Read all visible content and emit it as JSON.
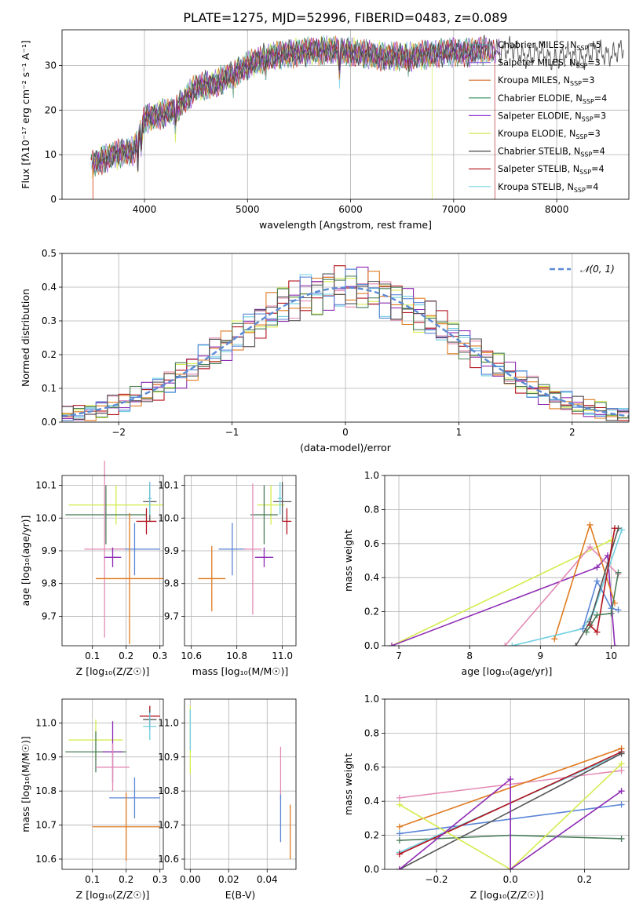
{
  "title": "PLATE=1275, MJD=52996, FIBERID=0483, z=0.089",
  "colors": {
    "Chabrier MILES": "#5f9ea0",
    "Salpeter MILES": "#9370db",
    "Kroupa MILES": "#d2691e",
    "Chabrier ELODIE": "#2e8b57",
    "Salpeter ELODIE": "#8b2fc9",
    "Kroupa ELODIE": "#d4e84a",
    "Chabrier STELIB": "#444444",
    "Salpeter STELIB": "#b0141a",
    "Kroupa STELIB": "#7fd4e6",
    "blue": "#5b86d6",
    "pink": "#e38ab5",
    "orange": "#e07b20",
    "purple": "#8e2bb4",
    "lime": "#d6ec50",
    "gray": "#555555",
    "red": "#b3121c",
    "cyan": "#6fcfe0",
    "green": "#4a7d5a",
    "normal": "#5b8bd6"
  },
  "chart_data": [
    {
      "id": "spectrum",
      "type": "line",
      "xlabel": "wavelength [Angstrom, rest frame]",
      "ylabel": "Flux [fλ10⁻¹⁷ erg cm⁻² s⁻¹ A⁻¹]",
      "xlim": [
        3200,
        8700
      ],
      "ylim": [
        0,
        38
      ],
      "xticks": [
        "4000",
        "5000",
        "6000",
        "7000",
        "8000"
      ],
      "yticks": [
        "0",
        "10",
        "20",
        "30"
      ],
      "anchors_x": [
        3500,
        3700,
        3900,
        4000,
        4300,
        4500,
        4700,
        5000,
        5200,
        5500,
        5800,
        6000,
        6300,
        6600,
        6900,
        7200,
        7400,
        7600,
        7900,
        8200,
        8500
      ],
      "anchors_y": [
        8,
        10,
        11,
        18,
        20,
        25,
        26,
        30,
        32,
        33,
        33.5,
        33,
        32,
        32,
        33,
        33,
        34,
        33,
        32,
        32,
        33
      ],
      "legend": [
        {
          "label": "Chabrier MILES, N",
          "sub": "SSP",
          "n": "=5",
          "color": "#5f9ea0"
        },
        {
          "label": "Salpeter MILES, N",
          "sub": "SSP",
          "n": "=3",
          "color": "#9370db"
        },
        {
          "label": "Kroupa MILES, N",
          "sub": "SSP",
          "n": "=3",
          "color": "#d2691e"
        },
        {
          "label": "Chabrier ELODIE, N",
          "sub": "SSP",
          "n": "=4",
          "color": "#2e8b57"
        },
        {
          "label": "Salpeter ELODIE, N",
          "sub": "SSP",
          "n": "=3",
          "color": "#8b2fc9"
        },
        {
          "label": "Kroupa ELODIE, N",
          "sub": "SSP",
          "n": "=3",
          "color": "#d4e84a"
        },
        {
          "label": "Chabrier STELIB, N",
          "sub": "SSP",
          "n": "=4",
          "color": "#444444"
        },
        {
          "label": "Salpeter STELIB, N",
          "sub": "SSP",
          "n": "=4",
          "color": "#b0141a"
        },
        {
          "label": "Kroupa STELIB, N",
          "sub": "SSP",
          "n": "=4",
          "color": "#7fd4e6"
        }
      ]
    },
    {
      "id": "residuals",
      "type": "line",
      "xlabel": "(data-model)/error",
      "ylabel": "Normed distribution",
      "xlim": [
        -2.5,
        2.5
      ],
      "ylim": [
        0,
        0.5
      ],
      "xticks": [
        "−2",
        "−1",
        "0",
        "1",
        "2"
      ],
      "yticks": [
        "0.0",
        "0.1",
        "0.2",
        "0.3",
        "0.4",
        "0.5"
      ],
      "legend_label": "𝒩(0, 1)",
      "legend_position": "top-right"
    },
    {
      "id": "age_vs_Z",
      "type": "scatter",
      "xlabel": "Z [log₁₀(Z/Z☉)]",
      "ylabel": "age  [log₁₀(age/yr)]",
      "xlim": [
        0.01,
        0.31
      ],
      "ylim": [
        9.61,
        10.13
      ],
      "xticks": [
        "0.1",
        "0.2",
        "0.3"
      ],
      "yticks": [
        "9.7",
        "9.8",
        "9.9",
        "10.0",
        "10.1"
      ],
      "points": [
        {
          "x": 0.17,
          "y": 10.04,
          "xerr": 0.14,
          "yerr": 0.06,
          "color": "#d6ec50"
        },
        {
          "x": 0.14,
          "y": 10.01,
          "xerr": 0.12,
          "yerr": 0.09,
          "color": "#4a7d5a"
        },
        {
          "x": 0.27,
          "y": 10.05,
          "xerr": 0.02,
          "yerr": 0.06,
          "color": "#555555"
        },
        {
          "x": 0.27,
          "y": 10.06,
          "xerr": 0.005,
          "yerr": 0.05,
          "color": "#6fcfe0"
        },
        {
          "x": 0.26,
          "y": 9.99,
          "xerr": 0.03,
          "yerr": 0.04,
          "color": "#b3121c"
        },
        {
          "x": 0.225,
          "y": 9.905,
          "xerr": 0.075,
          "yerr": 0.08,
          "color": "#5b86d6"
        },
        {
          "x": 0.136,
          "y": 9.905,
          "xerr": 0.06,
          "yerr": 0.27,
          "color": "#e38ab5"
        },
        {
          "x": 0.16,
          "y": 9.88,
          "xerr": 0.025,
          "yerr": 0.03,
          "color": "#8e2bb4"
        },
        {
          "x": 0.21,
          "y": 9.815,
          "xerr": 0.1,
          "yerr": 0.2,
          "color": "#e07b20"
        }
      ]
    },
    {
      "id": "age_vs_mass",
      "type": "scatter",
      "xlabel": "mass [log₁₀(M/M☉)]",
      "ylabel": "",
      "xlim": [
        10.57,
        11.06
      ],
      "ylim": [
        9.61,
        10.13
      ],
      "xticks": [
        "10.6",
        "10.8",
        "11.0"
      ],
      "yticks": [
        "9.7",
        "9.8",
        "9.9",
        "10.0",
        "10.1"
      ],
      "points": [
        {
          "x": 10.95,
          "y": 10.04,
          "xerr": 0.06,
          "yerr": 0.06,
          "color": "#d6ec50"
        },
        {
          "x": 10.92,
          "y": 10.01,
          "xerr": 0.06,
          "yerr": 0.09,
          "color": "#4a7d5a"
        },
        {
          "x": 11.0,
          "y": 10.05,
          "xerr": 0.04,
          "yerr": 0.06,
          "color": "#555555"
        },
        {
          "x": 10.99,
          "y": 10.06,
          "xerr": 0.01,
          "yerr": 0.05,
          "color": "#6fcfe0"
        },
        {
          "x": 11.02,
          "y": 9.99,
          "xerr": 0.02,
          "yerr": 0.04,
          "color": "#b3121c"
        },
        {
          "x": 10.78,
          "y": 9.905,
          "xerr": 0.06,
          "yerr": 0.08,
          "color": "#5b86d6"
        },
        {
          "x": 10.87,
          "y": 9.905,
          "xerr": 0.04,
          "yerr": 0.2,
          "color": "#e38ab5"
        },
        {
          "x": 10.92,
          "y": 9.88,
          "xerr": 0.04,
          "yerr": 0.03,
          "color": "#8e2bb4"
        },
        {
          "x": 10.69,
          "y": 9.815,
          "xerr": 0.06,
          "yerr": 0.1,
          "color": "#e07b20"
        }
      ]
    },
    {
      "id": "weight_vs_age",
      "type": "line",
      "xlabel": "age  [log₁₀(age/yr)]",
      "ylabel": "mass weight",
      "xlim": [
        6.8,
        10.25
      ],
      "ylim": [
        0,
        1
      ],
      "xticks": [
        "7",
        "8",
        "9",
        "10"
      ],
      "yticks": [
        "0.0",
        "0.2",
        "0.4",
        "0.6",
        "0.8",
        "1.0"
      ],
      "series": [
        {
          "color": "#d6ec50",
          "points": [
            [
              6.9,
              0.0
            ],
            [
              10.0,
              0.62
            ]
          ]
        },
        {
          "color": "#8e2bb4",
          "points": [
            [
              6.9,
              0.0
            ],
            [
              9.8,
              0.46
            ],
            [
              9.95,
              0.53
            ],
            [
              10.05,
              0.0
            ]
          ]
        },
        {
          "color": "#e38ab5",
          "points": [
            [
              8.5,
              0.0
            ],
            [
              9.7,
              0.58
            ],
            [
              10.1,
              0.42
            ]
          ]
        },
        {
          "color": "#e07b20",
          "points": [
            [
              9.2,
              0.04
            ],
            [
              9.7,
              0.71
            ],
            [
              10.05,
              0.25
            ]
          ]
        },
        {
          "color": "#6fcfe0",
          "points": [
            [
              8.6,
              0.0
            ],
            [
              9.6,
              0.1
            ],
            [
              9.75,
              0.2
            ],
            [
              10.15,
              0.68
            ]
          ]
        },
        {
          "color": "#5b86d6",
          "points": [
            [
              9.6,
              0.1
            ],
            [
              9.8,
              0.38
            ],
            [
              10.0,
              0.22
            ],
            [
              10.1,
              0.21
            ]
          ]
        },
        {
          "color": "#555555",
          "points": [
            [
              9.5,
              0.0
            ],
            [
              9.7,
              0.14
            ],
            [
              10.1,
              0.69
            ]
          ]
        },
        {
          "color": "#b3121c",
          "points": [
            [
              9.7,
              0.12
            ],
            [
              9.8,
              0.08
            ],
            [
              10.05,
              0.69
            ]
          ]
        },
        {
          "color": "#4a7d5a",
          "points": [
            [
              9.65,
              0.08
            ],
            [
              9.8,
              0.18
            ],
            [
              10.0,
              0.19
            ],
            [
              10.1,
              0.43
            ]
          ]
        }
      ]
    },
    {
      "id": "mass_vs_Z",
      "type": "scatter",
      "xlabel": "Z [log₁₀(Z/Z☉)]",
      "ylabel": "mass [log₁₀(M/M☉)]",
      "xlim": [
        0.01,
        0.31
      ],
      "ylim": [
        10.57,
        11.07
      ],
      "xticks": [
        "0.1",
        "0.2",
        "0.3"
      ],
      "yticks": [
        "10.6",
        "10.7",
        "10.8",
        "10.9",
        "11.0"
      ],
      "points": [
        {
          "x": 0.11,
          "y": 10.95,
          "xerr": 0.08,
          "yerr": 0.06,
          "color": "#d6ec50"
        },
        {
          "x": 0.11,
          "y": 10.915,
          "xerr": 0.09,
          "yerr": 0.06,
          "color": "#4a7d5a"
        },
        {
          "x": 0.16,
          "y": 10.915,
          "xerr": 0.03,
          "yerr": 0.09,
          "color": "#8e2bb4"
        },
        {
          "x": 0.27,
          "y": 11.02,
          "xerr": 0.03,
          "yerr": 0.03,
          "color": "#b3121c"
        },
        {
          "x": 0.27,
          "y": 11.01,
          "xerr": 0.02,
          "yerr": 0.03,
          "color": "#555555"
        },
        {
          "x": 0.27,
          "y": 10.99,
          "xerr": 0.02,
          "yerr": 0.04,
          "color": "#6fcfe0"
        },
        {
          "x": 0.16,
          "y": 10.87,
          "xerr": 0.05,
          "yerr": 0.07,
          "color": "#e38ab5"
        },
        {
          "x": 0.225,
          "y": 10.78,
          "xerr": 0.075,
          "yerr": 0.06,
          "color": "#5b86d6"
        },
        {
          "x": 0.2,
          "y": 10.695,
          "xerr": 0.1,
          "yerr": 0.1,
          "color": "#e07b20"
        }
      ]
    },
    {
      "id": "mass_vs_ebv",
      "type": "scatter",
      "xlabel": "E(B-V)",
      "ylabel": "",
      "xlim": [
        -0.003,
        0.055
      ],
      "ylim": [
        10.57,
        11.07
      ],
      "xticks": [
        "0.00",
        "0.02",
        "0.04"
      ],
      "yticks": [
        "10.6",
        "10.7",
        "10.8",
        "10.9",
        "11.0"
      ],
      "points": [
        {
          "x": 0.0,
          "y": 10.95,
          "xerr": 0.0,
          "yerr": 0.1,
          "color": "#d6ec50"
        },
        {
          "x": 0.0,
          "y": 10.98,
          "xerr": 0.0,
          "yerr": 0.06,
          "color": "#6fcfe0"
        },
        {
          "x": 0.047,
          "y": 10.85,
          "xerr": 0.0,
          "yerr": 0.08,
          "color": "#e38ab5"
        },
        {
          "x": 0.047,
          "y": 10.72,
          "xerr": 0.0,
          "yerr": 0.07,
          "color": "#5b86d6"
        },
        {
          "x": 0.052,
          "y": 10.68,
          "xerr": 0.0,
          "yerr": 0.08,
          "color": "#e07b20"
        }
      ]
    },
    {
      "id": "weight_vs_Z",
      "type": "line",
      "xlabel": "Z [log₁₀(Z/Z☉)]",
      "ylabel": "mass weight",
      "xlim": [
        -0.34,
        0.32
      ],
      "ylim": [
        0,
        1
      ],
      "xticks": [
        "−0.2",
        "0.0",
        "0.2"
      ],
      "yticks": [
        "0.0",
        "0.2",
        "0.4",
        "0.6",
        "0.8",
        "1.0"
      ],
      "series": [
        {
          "color": "#e38ab5",
          "points": [
            [
              -0.3,
              0.42
            ],
            [
              0.3,
              0.58
            ]
          ]
        },
        {
          "color": "#e07b20",
          "points": [
            [
              -0.3,
              0.25
            ],
            [
              0.3,
              0.71
            ]
          ]
        },
        {
          "color": "#5b86d6",
          "points": [
            [
              -0.3,
              0.21
            ],
            [
              0.3,
              0.38
            ]
          ]
        },
        {
          "color": "#4a7d5a",
          "points": [
            [
              -0.3,
              0.17
            ],
            [
              0.0,
              0.2
            ],
            [
              0.3,
              0.18
            ]
          ]
        },
        {
          "color": "#6fcfe0",
          "points": [
            [
              -0.3,
              0.1
            ],
            [
              0.3,
              0.68
            ]
          ]
        },
        {
          "color": "#b3121c",
          "points": [
            [
              -0.3,
              0.09
            ],
            [
              0.3,
              0.69
            ]
          ]
        },
        {
          "color": "#555555",
          "points": [
            [
              -0.3,
              0.0
            ],
            [
              0.3,
              0.68
            ]
          ]
        },
        {
          "color": "#d6ec50",
          "points": [
            [
              -0.3,
              0.38
            ],
            [
              0.0,
              0.0
            ],
            [
              0.3,
              0.62
            ]
          ]
        },
        {
          "color": "#8e2bb4",
          "points": [
            [
              -0.3,
              0.0
            ],
            [
              0.0,
              0.53
            ],
            [
              0.0,
              0.0
            ],
            [
              0.3,
              0.46
            ]
          ]
        }
      ]
    }
  ]
}
